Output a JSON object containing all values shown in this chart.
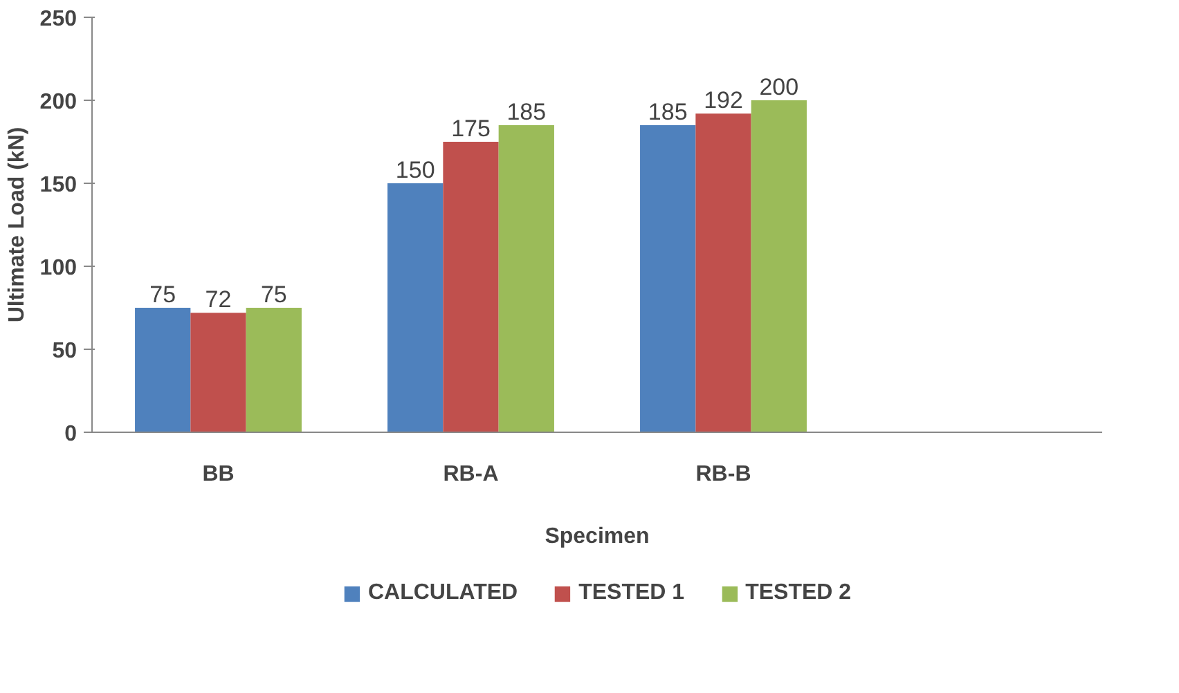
{
  "chart_data": {
    "type": "bar",
    "xlabel": "Specimen",
    "ylabel": "Ultimate Load (kN)",
    "categories": [
      "BB",
      "RB-A",
      "RB-B",
      null
    ],
    "series": [
      {
        "name": "CALCULATED",
        "color": "#4f81bd",
        "values": [
          75,
          150,
          185,
          null
        ]
      },
      {
        "name": "TESTED 1",
        "color": "#c0504d",
        "values": [
          72,
          175,
          192,
          null
        ]
      },
      {
        "name": "TESTED 2",
        "color": "#9bbb59",
        "values": [
          75,
          185,
          200,
          null
        ]
      }
    ],
    "ylim": [
      0,
      250
    ],
    "yticks": [
      0,
      50,
      100,
      150,
      200,
      250
    ],
    "grid": false,
    "legend": "bottom",
    "data_labels": true
  }
}
